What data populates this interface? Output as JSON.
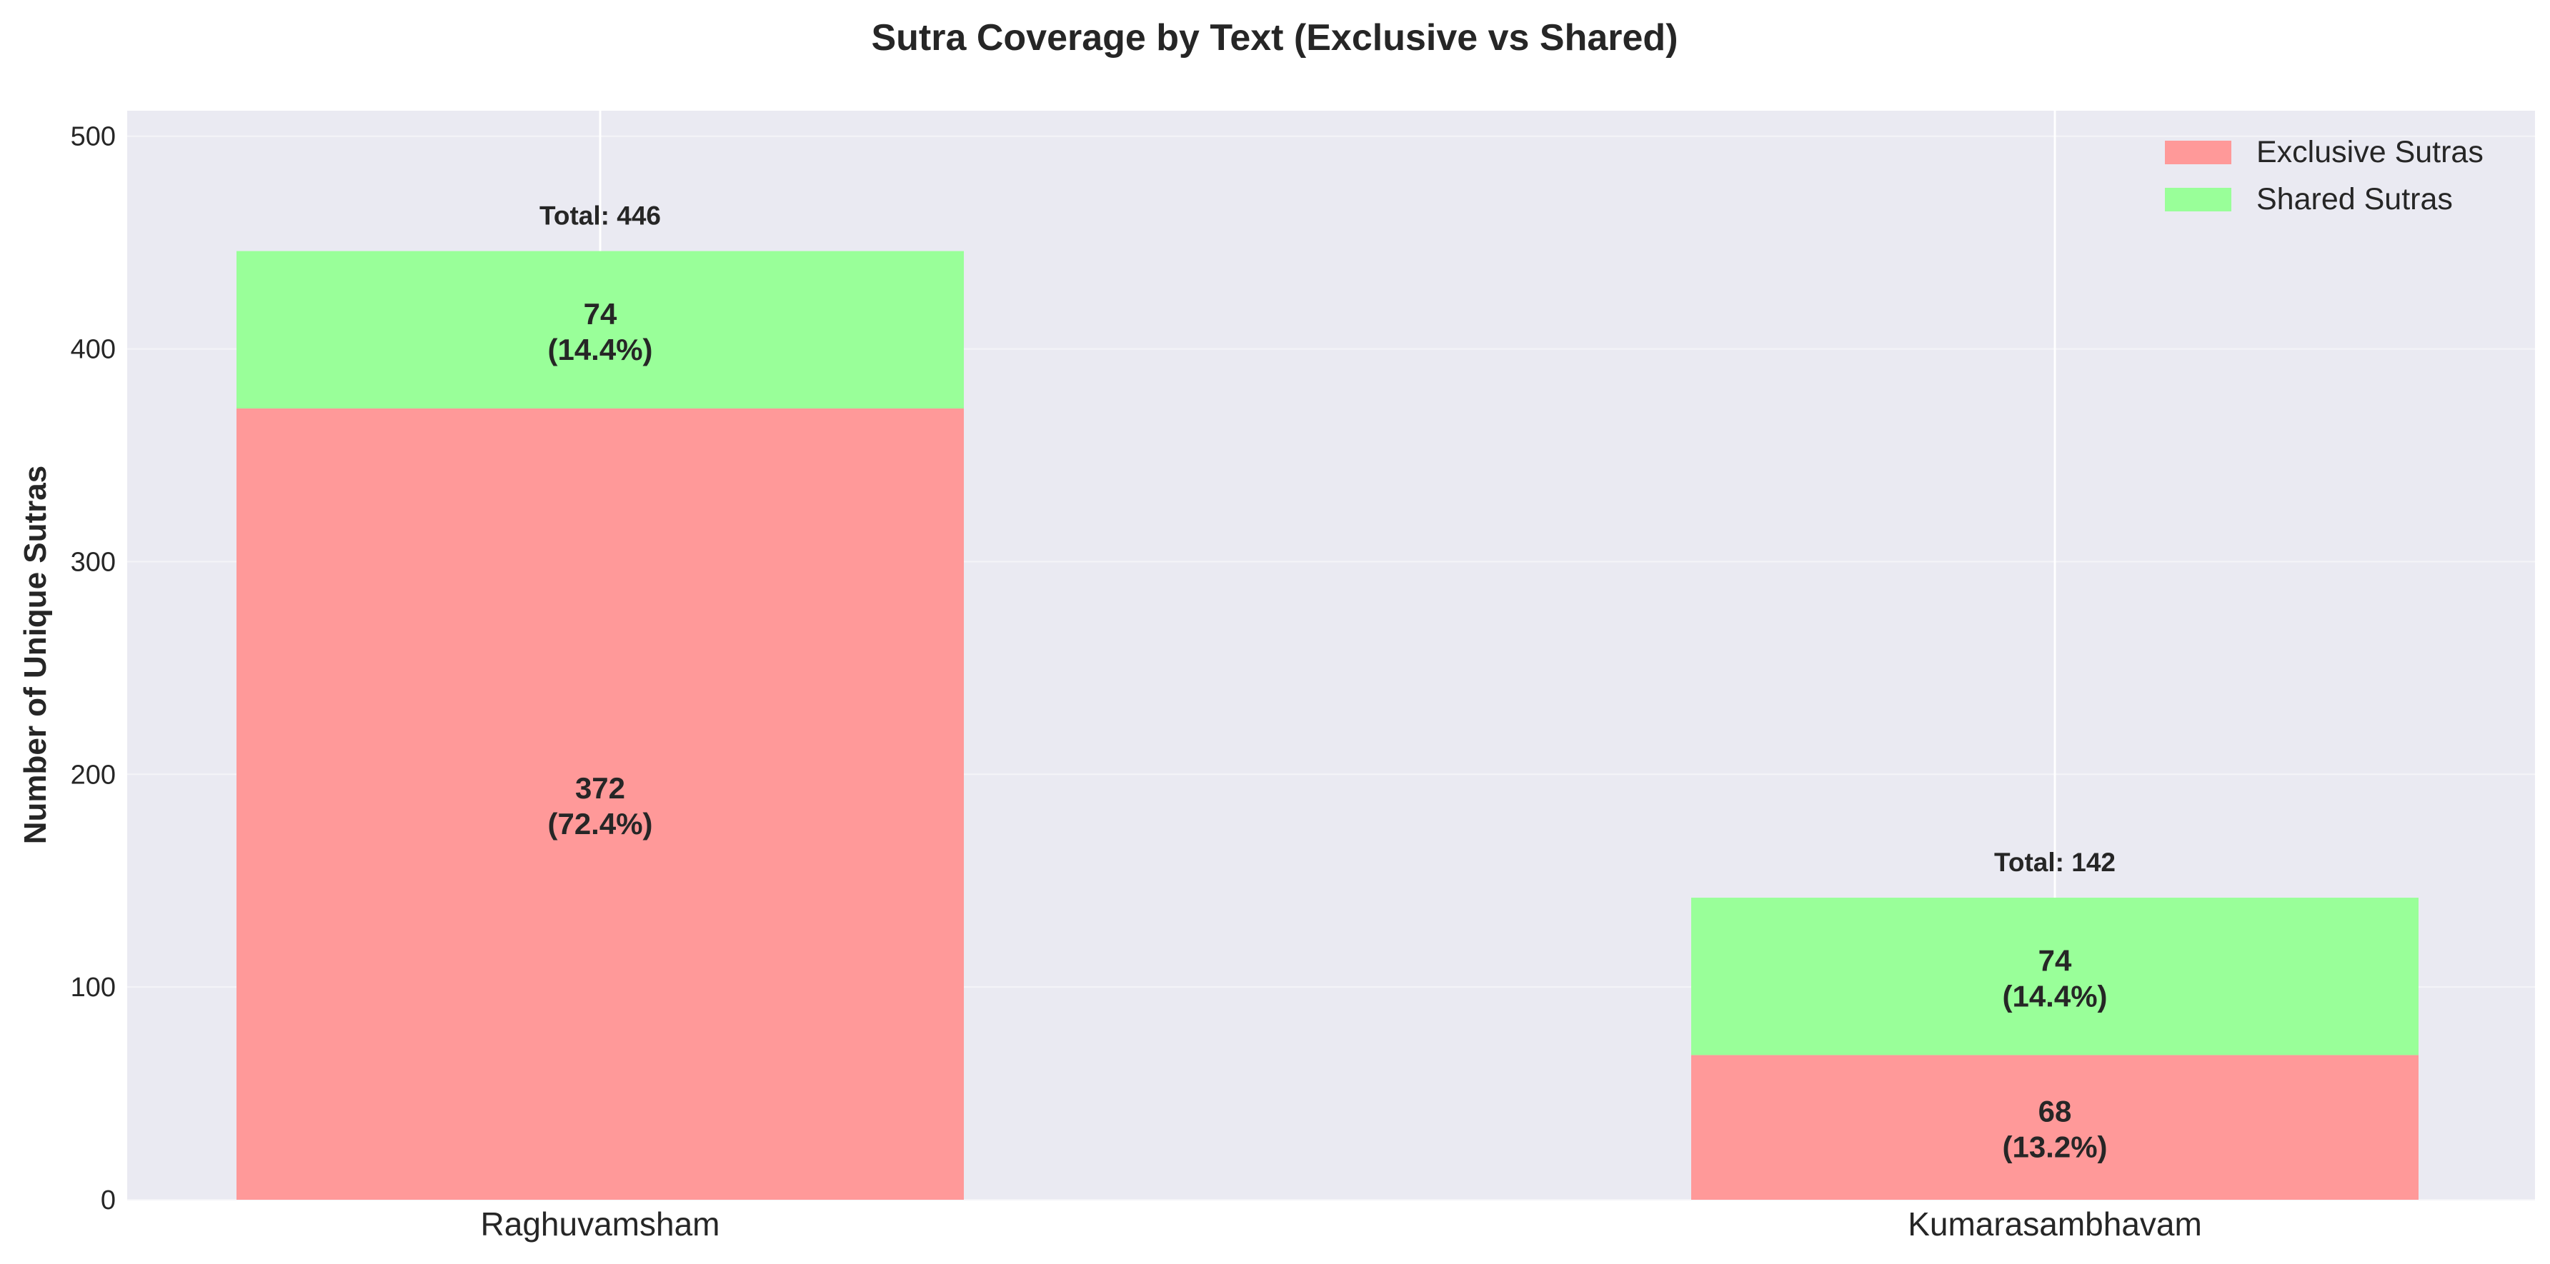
{
  "chart_data": {
    "type": "bar",
    "stacked": true,
    "title": "Sutra Coverage by Text (Exclusive vs Shared)",
    "xlabel": "",
    "ylabel": "Number of Unique Sutras",
    "ylim": [
      0,
      512
    ],
    "yticks": [
      0,
      100,
      200,
      300,
      400,
      500
    ],
    "categories": [
      "Raghuvamsham",
      "Kumarasambhavam"
    ],
    "series": [
      {
        "name": "Exclusive Sutras",
        "color": "#ff9999",
        "values": [
          372,
          68
        ],
        "labels": [
          {
            "line1": "372",
            "line2": "(72.4%)"
          },
          {
            "line1": "68",
            "line2": "(13.2%)"
          }
        ]
      },
      {
        "name": "Shared Sutras",
        "color": "#99ff99",
        "values": [
          74,
          74
        ],
        "labels": [
          {
            "line1": "74",
            "line2": "(14.4%)"
          },
          {
            "line1": "74",
            "line2": "(14.4%)"
          }
        ]
      }
    ],
    "totals": [
      "Total: 446",
      "Total: 142"
    ],
    "grid": true,
    "legend_position": "top-right",
    "background_color": "#eaeaf2"
  }
}
